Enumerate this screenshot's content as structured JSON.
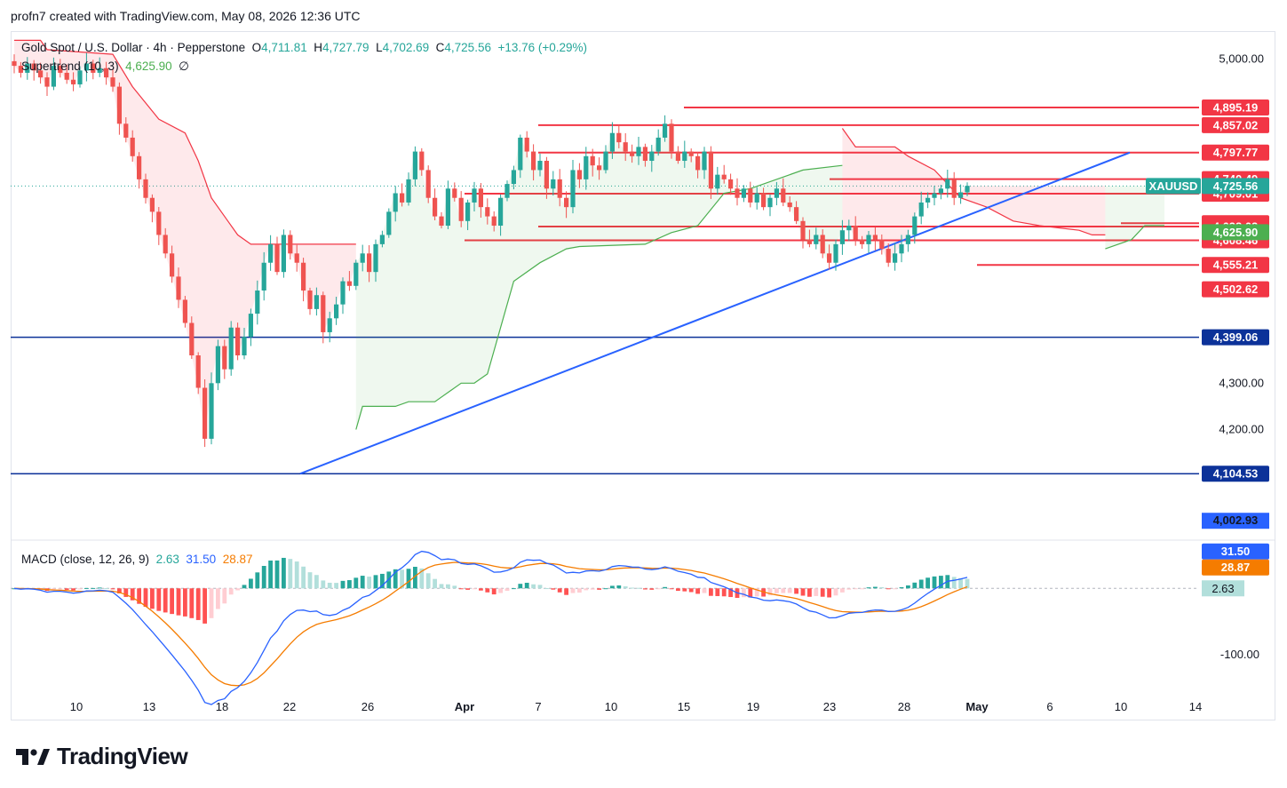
{
  "header": {
    "credit": "profn7 created with TradingView.com, May 08, 2026 12:36 UTC"
  },
  "legend": {
    "symbol": "Gold Spot / U.S. Dollar · 4h · Pepperstone",
    "open_label": "O",
    "open": "4,711.81",
    "high_label": "H",
    "high": "4,727.79",
    "low_label": "L",
    "low": "4,702.69",
    "close_label": "C",
    "close": "4,725.56",
    "change": "+13.76 (+0.29%)",
    "supertrend_label": "Supertrend (10, 3)",
    "supertrend_value": "4,625.90",
    "supertrend_extra": "∅",
    "macd_label": "MACD (close, 12, 26, 9)",
    "macd_hist": "2.63",
    "macd_line": "31.50",
    "macd_signal": "28.87"
  },
  "brand": {
    "name": "TradingView"
  },
  "colors": {
    "up": "#26a69a",
    "down": "#ef5350",
    "level": "#f23645",
    "support": "#0c3299",
    "trendline": "#2962ff",
    "st_up": "#4caf50",
    "st_down": "#f23645",
    "signal": "#f57c00"
  },
  "chart_data": {
    "type": "candlestick",
    "symbol": "XAUUSD",
    "timeframe": "4h",
    "x_tick_labels": [
      "10",
      "13",
      "18",
      "22",
      "26",
      "Apr",
      "7",
      "10",
      "15",
      "19",
      "23",
      "28",
      "May",
      "6",
      "10",
      "14"
    ],
    "price_axis_ticks": [
      5000,
      4300,
      4200,
      4002.93
    ],
    "price_axis_tick_labels": [
      "5,000.00",
      "4,300.00",
      "4,200.00",
      "4,002.93"
    ],
    "ylim": [
      3965,
      5060
    ],
    "current_price": 4725.56,
    "resistance_levels": [
      {
        "price": 4895.19,
        "label": "4,895.19",
        "from": "15"
      },
      {
        "price": 4857.02,
        "label": "4,857.02",
        "from": "7"
      },
      {
        "price": 4797.77,
        "label": "4,797.77",
        "from": "7"
      },
      {
        "price": 4740.49,
        "label": "4,740.49",
        "from": "23"
      },
      {
        "price": 4709.01,
        "label": "4,709.01",
        "from": "Apr"
      },
      {
        "price": 4645.29,
        "label": "4,645.29",
        "from": "10"
      },
      {
        "price": 4638.02,
        "label": "4,638.02",
        "from": "7"
      },
      {
        "price": 4608.46,
        "label": "4,608.46",
        "from": "Apr"
      },
      {
        "price": 4555.21,
        "label": "4,555.21",
        "from": "May"
      }
    ],
    "extra_price_labels": [
      {
        "price": 4502.62,
        "label": "4,502.62"
      }
    ],
    "support_levels": [
      {
        "price": 4399.06,
        "label": "4,399.06"
      },
      {
        "price": 4104.53,
        "label": "4,104.53"
      }
    ],
    "supertrend_current": {
      "price": 4625.9,
      "label": "4,625.90"
    },
    "trendline": {
      "from": {
        "t": 22.0,
        "price": 4104.53
      },
      "to": {
        "t": 118.0,
        "price": 4797.77
      }
    },
    "closes": [
      4985,
      4970,
      4990,
      4975,
      4960,
      4940,
      4985,
      4970,
      4955,
      4945,
      4975,
      4990,
      4970,
      4980,
      4960,
      4940,
      4860,
      4830,
      4790,
      4740,
      4700,
      4670,
      4620,
      4580,
      4530,
      4480,
      4430,
      4360,
      4290,
      4180,
      4300,
      4380,
      4330,
      4420,
      4360,
      4400,
      4450,
      4500,
      4560,
      4600,
      4540,
      4620,
      4580,
      4560,
      4500,
      4460,
      4490,
      4410,
      4440,
      4470,
      4520,
      4510,
      4560,
      4580,
      4540,
      4600,
      4620,
      4670,
      4710,
      4690,
      4740,
      4800,
      4760,
      4700,
      4660,
      4640,
      4720,
      4700,
      4650,
      4690,
      4720,
      4680,
      4660,
      4640,
      4700,
      4730,
      4760,
      4830,
      4800,
      4760,
      4780,
      4720,
      4740,
      4700,
      4680,
      4760,
      4740,
      4790,
      4770,
      4760,
      4800,
      4840,
      4820,
      4800,
      4790,
      4810,
      4780,
      4800,
      4830,
      4860,
      4800,
      4780,
      4800,
      4790,
      4760,
      4800,
      4720,
      4750,
      4740,
      4720,
      4700,
      4720,
      4690,
      4710,
      4680,
      4700,
      4720,
      4690,
      4680,
      4650,
      4610,
      4600,
      4620,
      4580,
      4560,
      4600,
      4630,
      4640,
      4610,
      4600,
      4620,
      4610,
      4590,
      4560,
      4580,
      4600,
      4620,
      4660,
      4690,
      4700,
      4710,
      4720,
      4740,
      4700,
      4712,
      4726
    ],
    "supertrend": [
      {
        "dir": "down",
        "points": [
          [
            0,
            5040
          ],
          [
            4,
            5040
          ],
          [
            5,
            5020
          ],
          [
            15,
            5010
          ],
          [
            18,
            4940
          ],
          [
            22,
            4870
          ],
          [
            26,
            4840
          ],
          [
            28,
            4780
          ],
          [
            30,
            4700
          ],
          [
            34,
            4620
          ],
          [
            36,
            4600
          ],
          [
            52,
            4600
          ]
        ]
      },
      {
        "dir": "up",
        "points": [
          [
            52,
            4200
          ],
          [
            53,
            4250
          ],
          [
            58,
            4250
          ],
          [
            60,
            4260
          ],
          [
            64,
            4260
          ],
          [
            68,
            4300
          ],
          [
            70,
            4300
          ],
          [
            72,
            4320
          ],
          [
            74,
            4420
          ],
          [
            76,
            4520
          ],
          [
            80,
            4560
          ],
          [
            84,
            4590
          ],
          [
            86,
            4595
          ],
          [
            96,
            4600
          ],
          [
            100,
            4625
          ],
          [
            104,
            4640
          ],
          [
            108,
            4710
          ],
          [
            112,
            4720
          ],
          [
            120,
            4760
          ],
          [
            126,
            4770
          ]
        ]
      },
      {
        "dir": "down",
        "points": [
          [
            126,
            4850
          ],
          [
            128,
            4810
          ],
          [
            134,
            4810
          ],
          [
            136,
            4790
          ],
          [
            140,
            4760
          ],
          [
            144,
            4700
          ],
          [
            148,
            4680
          ],
          [
            152,
            4650
          ],
          [
            156,
            4640
          ],
          [
            162,
            4630
          ],
          [
            164,
            4620
          ],
          [
            166,
            4620
          ]
        ]
      },
      {
        "dir": "up",
        "points": [
          [
            166,
            4590
          ],
          [
            170,
            4610
          ],
          [
            172,
            4640
          ],
          [
            175,
            4640
          ]
        ]
      }
    ],
    "macd": {
      "y_tick_labels": [
        "-100.00"
      ],
      "ylim": [
        -155,
        70
      ],
      "current": {
        "hist": 2.63,
        "macd": 31.5,
        "signal": 28.87
      }
    }
  }
}
